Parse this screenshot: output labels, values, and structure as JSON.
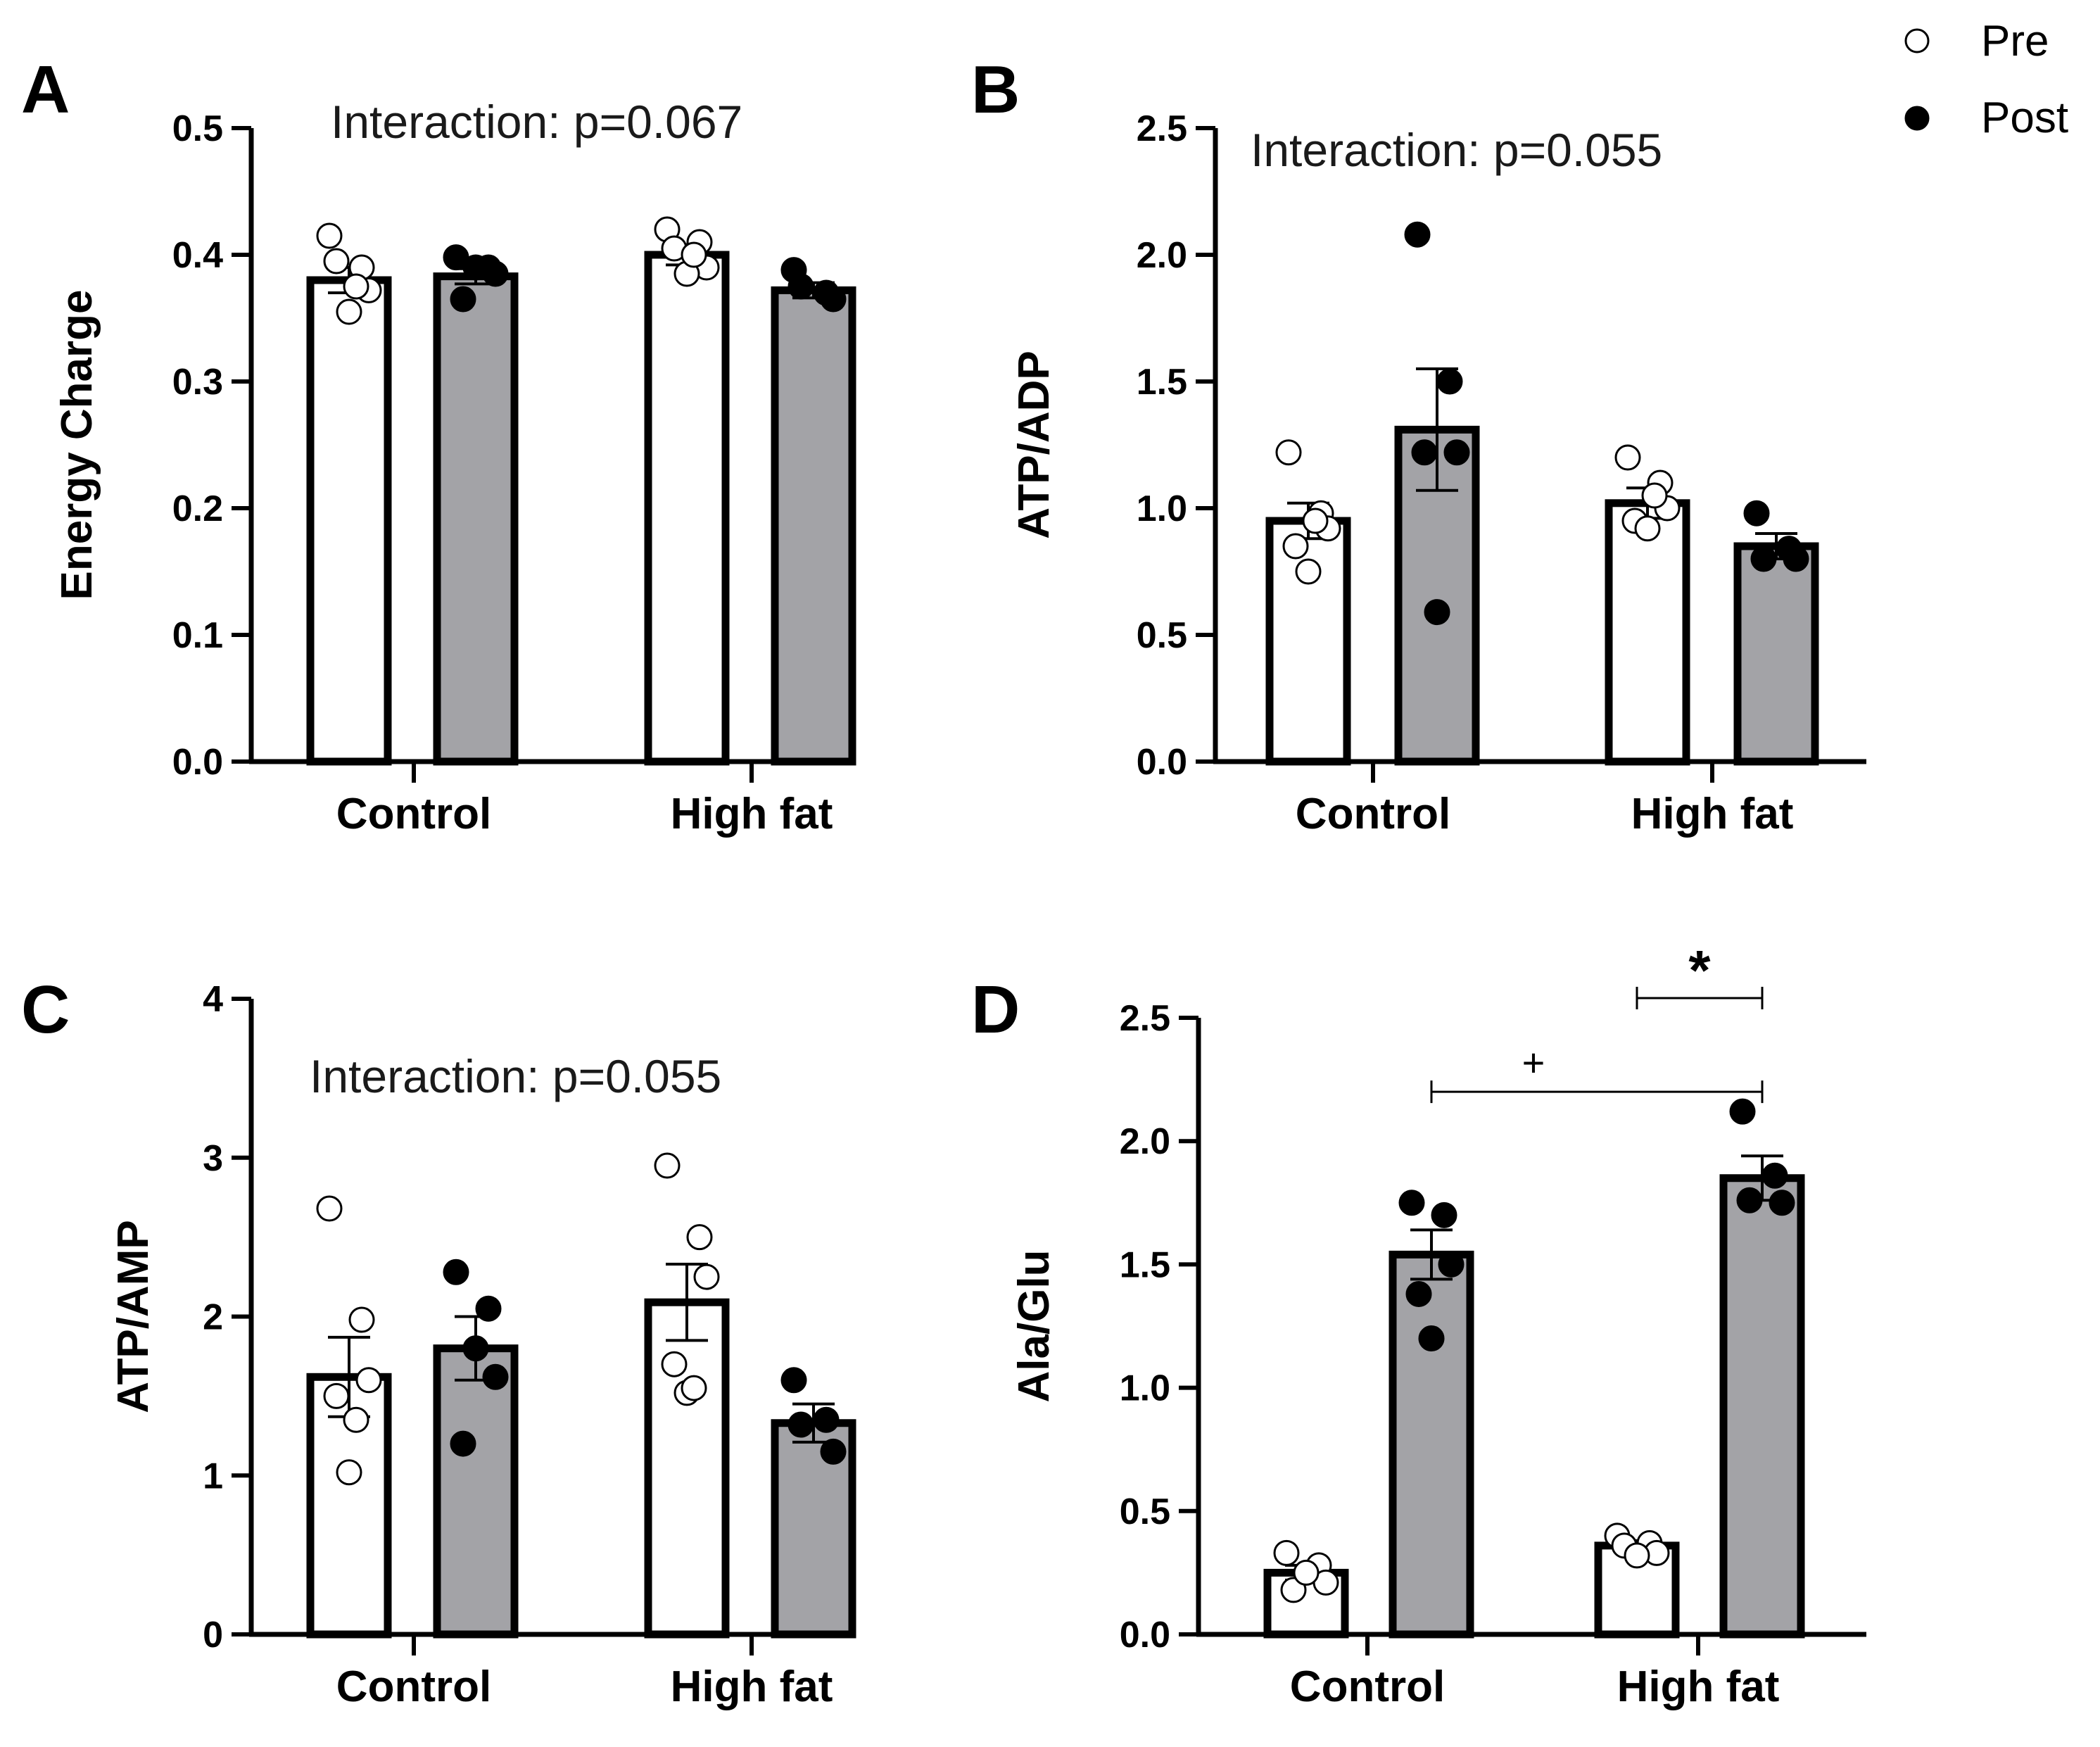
{
  "legend": {
    "items": [
      {
        "label": "Pre",
        "marker": "open-circle"
      },
      {
        "label": "Post",
        "marker": "filled-circle"
      }
    ]
  },
  "colors": {
    "pre_fill": "#ffffff",
    "post_fill": "#a3a3a7",
    "stroke": "#000000"
  },
  "chart_data": [
    {
      "panel": "A",
      "type": "bar",
      "ylabel": "Energy Charge",
      "annotation": "Interaction: p=0.067",
      "categories": [
        "Control",
        "High fat"
      ],
      "yticks": [
        "0.0",
        "0.1",
        "0.2",
        "0.3",
        "0.4",
        "0.5"
      ],
      "ylim": [
        0,
        0.5
      ],
      "series": [
        {
          "name": "Pre",
          "values": [
            0.38,
            0.4
          ],
          "sem": [
            0.01,
            0.008
          ],
          "points": [
            [
              0.415,
              0.39,
              0.372,
              0.395,
              0.355,
              0.375
            ],
            [
              0.42,
              0.41,
              0.39,
              0.405,
              0.385,
              0.4
            ]
          ]
        },
        {
          "name": "Post",
          "values": [
            0.383,
            0.372
          ],
          "sem": [
            0.006,
            0.006
          ],
          "points": [
            [
              0.398,
              0.39,
              0.385,
              0.365,
              0.39
            ],
            [
              0.388,
              0.37,
              0.365,
              0.375
            ]
          ]
        }
      ],
      "significance": []
    },
    {
      "panel": "B",
      "type": "bar",
      "ylabel": "ATP/ADP",
      "annotation": "Interaction: p=0.055",
      "categories": [
        "Control",
        "High fat"
      ],
      "yticks": [
        "0.0",
        "0.5",
        "1.0",
        "1.5",
        "2.0",
        "2.5"
      ],
      "ylim": [
        0,
        2.5
      ],
      "series": [
        {
          "name": "Pre",
          "values": [
            0.95,
            1.02
          ],
          "sem": [
            0.07,
            0.06
          ],
          "points": [
            [
              1.22,
              0.98,
              0.92,
              0.85,
              0.75,
              0.95
            ],
            [
              1.2,
              1.1,
              1.0,
              0.95,
              0.92,
              1.05
            ]
          ]
        },
        {
          "name": "Post",
          "values": [
            1.31,
            0.85
          ],
          "sem": [
            0.24,
            0.05
          ],
          "points": [
            [
              2.08,
              1.5,
              1.22,
              1.22,
              0.59
            ],
            [
              0.98,
              0.84,
              0.8,
              0.8
            ]
          ]
        }
      ],
      "significance": []
    },
    {
      "panel": "C",
      "type": "bar",
      "ylabel": "ATP/AMP",
      "annotation": "Interaction: p=0.055",
      "categories": [
        "Control",
        "High fat"
      ],
      "yticks": [
        "0",
        "1",
        "2",
        "3",
        "4"
      ],
      "ylim": [
        0,
        4
      ],
      "series": [
        {
          "name": "Pre",
          "values": [
            1.62,
            2.09
          ],
          "sem": [
            0.25,
            0.24
          ],
          "points": [
            [
              2.68,
              1.98,
              1.6,
              1.5,
              1.02,
              1.35
            ],
            [
              2.95,
              2.5,
              2.25,
              1.7,
              1.52,
              1.55
            ]
          ]
        },
        {
          "name": "Post",
          "values": [
            1.8,
            1.33
          ],
          "sem": [
            0.2,
            0.12
          ],
          "points": [
            [
              2.28,
              2.05,
              1.62,
              1.2,
              1.8
            ],
            [
              1.6,
              1.35,
              1.15,
              1.32
            ]
          ]
        }
      ],
      "significance": []
    },
    {
      "panel": "D",
      "type": "bar",
      "ylabel": "Ala/Glu",
      "annotation": "",
      "categories": [
        "Control",
        "High fat"
      ],
      "yticks": [
        "0.0",
        "0.5",
        "1.0",
        "1.5",
        "2.0",
        "2.5"
      ],
      "ylim": [
        0,
        2.5
      ],
      "series": [
        {
          "name": "Pre",
          "values": [
            0.25,
            0.36
          ],
          "sem": [
            0.03,
            0.02
          ],
          "points": [
            [
              0.33,
              0.28,
              0.21,
              0.18,
              0.25
            ],
            [
              0.4,
              0.37,
              0.33,
              0.36,
              0.32
            ]
          ]
        },
        {
          "name": "Post",
          "values": [
            1.54,
            1.85
          ],
          "sem": [
            0.1,
            0.09
          ],
          "points": [
            [
              1.75,
              1.7,
              1.5,
              1.38,
              1.2
            ],
            [
              2.12,
              1.86,
              1.75,
              1.76
            ]
          ]
        }
      ],
      "significance": [
        {
          "symbol": "*",
          "from": "High fat Pre",
          "to": "High fat Post",
          "level": 2.58
        },
        {
          "symbol": "+",
          "from": "Control Post",
          "to": "High fat Post",
          "level": 2.2
        }
      ]
    }
  ]
}
